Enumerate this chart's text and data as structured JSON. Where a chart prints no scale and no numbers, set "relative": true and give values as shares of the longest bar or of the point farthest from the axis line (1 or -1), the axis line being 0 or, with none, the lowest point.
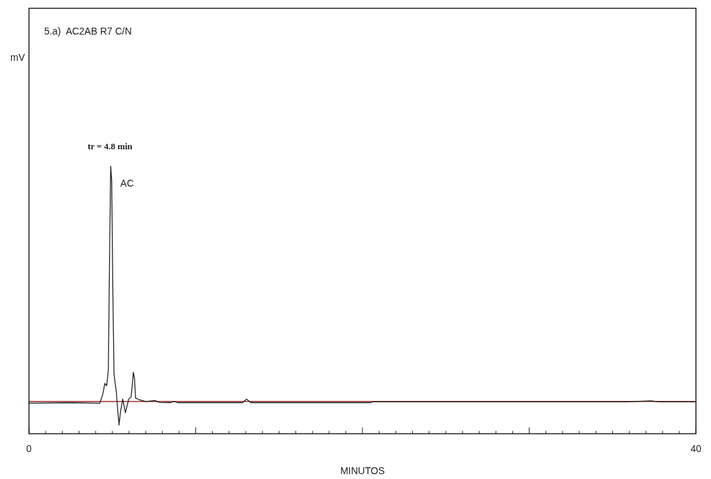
{
  "chart_data": {
    "type": "line",
    "title": "5.a)  AC2AB R7 C/N",
    "xlabel": "MINUTOS",
    "relative": true,
    "xlim": [
      0,
      40
    ],
    "xticks": [
      0,
      {
        "value": 1,
        "label": null
      },
      {
        "value": 2,
        "label": null
      },
      {
        "value": 3,
        "label": null
      },
      {
        "value": 4,
        "label": null
      },
      {
        "value": 5,
        "label": null
      },
      {
        "value": 6,
        "label": null
      },
      {
        "value": 7,
        "label": null
      },
      {
        "value": 8,
        "label": null
      },
      {
        "value": 9,
        "label": null
      },
      {
        "value": 10,
        "label": null
      },
      {
        "value": 11,
        "label": null
      },
      {
        "value": 12,
        "label": null
      },
      {
        "value": 13,
        "label": null
      },
      {
        "value": 14,
        "label": null
      },
      {
        "value": 15,
        "label": null
      },
      {
        "value": 16,
        "label": null
      },
      {
        "value": 17,
        "label": null
      },
      {
        "value": 18,
        "label": null
      },
      {
        "value": 19,
        "label": null
      },
      {
        "value": 20,
        "label": null
      },
      {
        "value": 21,
        "label": null
      },
      {
        "value": 22,
        "label": null
      },
      {
        "value": 23,
        "label": null
      },
      {
        "value": 24,
        "label": null
      },
      {
        "value": 25,
        "label": null
      },
      {
        "value": 26,
        "label": null
      },
      {
        "value": 27,
        "label": null
      },
      {
        "value": 28,
        "label": null
      },
      {
        "value": 29,
        "label": null
      },
      {
        "value": 30,
        "label": null
      },
      {
        "value": 31,
        "label": null
      },
      {
        "value": 32,
        "label": null
      },
      {
        "value": 33,
        "label": null
      },
      {
        "value": 34,
        "label": null
      },
      {
        "value": 35,
        "label": null
      },
      {
        "value": 36,
        "label": null
      },
      {
        "value": 37,
        "label": null
      },
      {
        "value": 38,
        "label": null
      },
      {
        "value": 39,
        "label": null
      },
      40
    ],
    "tick_labels": "x",
    "grid": false,
    "legend": false,
    "series": [
      {
        "color": "#222222",
        "x": [
          0,
          2.5,
          4.25,
          4.42,
          4.55,
          4.66,
          4.76,
          4.83,
          4.9,
          4.96,
          5.03,
          5.1,
          5.24,
          5.3,
          5.4,
          5.48,
          5.62,
          5.78,
          5.98,
          6.12,
          6.19,
          6.26,
          6.33,
          6.39,
          6.6,
          7.0,
          7.55,
          7.8,
          8.5,
          8.7,
          8.9,
          12.8,
          13.05,
          13.3,
          20.5,
          20.6,
          35.8,
          37.3,
          37.8,
          40
        ],
        "values": [
          0.114,
          0.116,
          0.114,
          0.146,
          0.188,
          0.179,
          0.238,
          0.652,
          1.0,
          0.945,
          0.525,
          0.222,
          0.154,
          0.104,
          0.032,
          0.078,
          0.129,
          0.078,
          0.129,
          0.137,
          0.179,
          0.23,
          0.205,
          0.133,
          0.127,
          0.12,
          0.124,
          0.117,
          0.116,
          0.121,
          0.116,
          0.116,
          0.129,
          0.116,
          0.116,
          0.119,
          0.119,
          0.123,
          0.119,
          0.119
        ]
      }
    ],
    "ref_lines": [
      {
        "axis": "y",
        "value": 0.12,
        "color": "#8b0000"
      }
    ],
    "annotations": [
      "mV",
      {
        "text": "tr = 4.8 min",
        "x": 4.9,
        "y": 1.0
      },
      {
        "text": "AC",
        "x": 4.9,
        "y": 1.0
      }
    ]
  }
}
